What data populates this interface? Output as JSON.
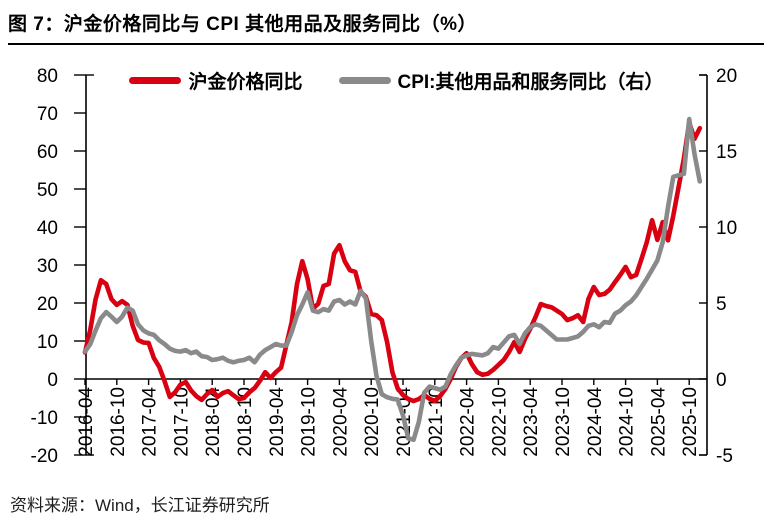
{
  "title": "图 7：沪金价格同比与 CPI 其他用品及服务同比（%）",
  "source_note": "资料来源：Wind，长江证券研究所",
  "colors": {
    "red": "#d90011",
    "gray": "#8a8a8a",
    "axis": "#000000",
    "text": "#000000"
  },
  "chart_data": {
    "type": "line",
    "title": "沪金价格同比与 CPI 其他用品及服务同比（%）",
    "grid": false,
    "legend_position": "top",
    "x_unit": "month",
    "x_start": "2016-04",
    "x_end": "2025-12",
    "x_tick_labels": [
      "2016-04",
      "2016-10",
      "2017-04",
      "2017-10",
      "2018-04",
      "2018-10",
      "2019-04",
      "2019-10",
      "2020-04",
      "2020-10",
      "2021-04",
      "2021-10",
      "2022-04",
      "2022-10",
      "2023-04",
      "2023-10",
      "2024-04",
      "2024-10",
      "2025-04",
      "2025-10"
    ],
    "left_axis": {
      "range": [
        -20,
        80
      ],
      "ticks": [
        80,
        70,
        60,
        50,
        40,
        30,
        20,
        10,
        0,
        -10,
        -20
      ]
    },
    "right_axis": {
      "range": [
        -5,
        20
      ],
      "ticks": [
        20,
        15,
        10,
        5,
        0,
        -5
      ]
    },
    "series": [
      {
        "name": "沪金价格同比",
        "axis": "left",
        "color": "#d90011",
        "values": [
          7,
          13,
          21,
          26,
          25,
          21,
          19.5,
          20.5,
          19.5,
          14,
          10.3,
          9.6,
          9.5,
          5.5,
          3.2,
          -0.5,
          -4.7,
          -3.5,
          -1.5,
          -0.8,
          -3,
          -4.5,
          -5.5,
          -4,
          -2.9,
          -4.7,
          -3.7,
          -3.2,
          -4.3,
          -5.3,
          -5,
          -3.5,
          -2.4,
          -0.5,
          1.8,
          0.3,
          1.8,
          3,
          9,
          15,
          25,
          31,
          26.3,
          18.5,
          19.8,
          24.5,
          25,
          33,
          35.2,
          31,
          28.6,
          28.2,
          23,
          21.6,
          17.1,
          16.8,
          15.5,
          9.7,
          1.8,
          -2.5,
          -4.2,
          -5.3,
          -5.8,
          -5.3,
          -4.2,
          -5.2,
          -5.8,
          -4.5,
          -2.6,
          0,
          3.2,
          5.5,
          6.8,
          3.9,
          1.8,
          1.1,
          1.4,
          2.4,
          3.7,
          5,
          7.1,
          9.7,
          7.1,
          10.5,
          13.2,
          16.3,
          19.7,
          19.2,
          18.9,
          18,
          17.1,
          15.5,
          16,
          16.8,
          15,
          21.1,
          24.2,
          22.1,
          22.4,
          23.5,
          25.5,
          27.4,
          29.5,
          26.8,
          27.4,
          31.6,
          36,
          41.8,
          36.6,
          41.3,
          36.5,
          43,
          50.5,
          58,
          67.5,
          63.2,
          66
        ]
      },
      {
        "name": "CPI:其他用品和服务同比（右）",
        "axis": "right",
        "color": "#8a8a8a",
        "values": [
          1.8,
          2.3,
          3.2,
          4,
          4.4,
          4.1,
          3.75,
          4.1,
          4.7,
          4.5,
          3.6,
          3.2,
          3,
          2.9,
          2.55,
          2.3,
          2,
          1.85,
          1.8,
          1.9,
          1.7,
          1.8,
          1.5,
          1.45,
          1.25,
          1.3,
          1.4,
          1.2,
          1.1,
          1.2,
          1.25,
          1.4,
          1.1,
          1.6,
          1.9,
          2.1,
          2.3,
          2.2,
          2.2,
          3.1,
          4.2,
          4.9,
          5.7,
          4.5,
          4.4,
          4.6,
          4.5,
          5.1,
          5.2,
          4.9,
          5.1,
          4.9,
          5.8,
          5.3,
          2.5,
          0.2,
          -1,
          -1.2,
          -1.3,
          -1.35,
          -2.4,
          -3.9,
          -4,
          -2.8,
          -0.9,
          -0.5,
          -0.6,
          -0.7,
          -0.5,
          0.3,
          0.9,
          1.4,
          1.55,
          1.65,
          1.6,
          1.55,
          1.7,
          2.1,
          2,
          2.4,
          2.8,
          2.9,
          2.3,
          3,
          3.4,
          3.6,
          3.5,
          3.2,
          2.9,
          2.6,
          2.6,
          2.6,
          2.7,
          2.8,
          3.1,
          3.5,
          3.6,
          3.4,
          3.75,
          3.7,
          4.3,
          4.5,
          4.85,
          5.1,
          5.5,
          6.05,
          6.6,
          7.2,
          7.8,
          9,
          11.3,
          13.3,
          13.4,
          13.5,
          17.1,
          14.8,
          13
        ]
      }
    ]
  }
}
